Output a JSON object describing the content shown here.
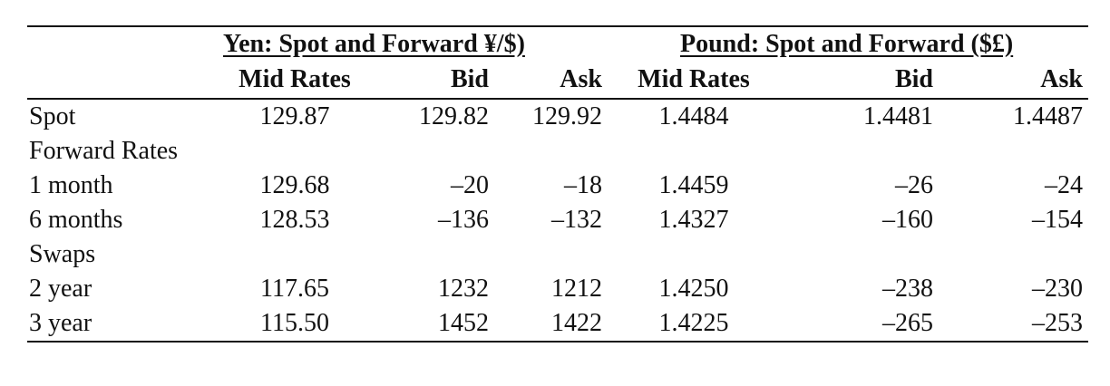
{
  "header": {
    "groups": [
      "Yen: Spot and Forward ¥/$)",
      "Pound: Spot and Forward ($£)"
    ],
    "columns": [
      "Mid Rates",
      "Bid",
      "Ask",
      "Mid Rates",
      "Bid",
      "Ask"
    ]
  },
  "table": {
    "rows": [
      [
        "Spot",
        "129.87",
        "129.82",
        "129.92",
        "1.4484",
        "1.4481",
        "1.4487"
      ],
      [
        "Forward Rates"
      ],
      [
        "1 month",
        "129.68",
        "–20",
        "–18",
        "1.4459",
        "–26",
        "–24"
      ],
      [
        "6 months",
        "128.53",
        "–136",
        "–132",
        "1.4327",
        "–160",
        "–154"
      ],
      [
        "Swaps"
      ],
      [
        "2 year",
        "117.65",
        "1232",
        "1212",
        "1.4250",
        "–238",
        "–230"
      ],
      [
        "3 year",
        "115.50",
        "1452",
        "1422",
        "1.4225",
        "–265",
        "–253"
      ]
    ]
  }
}
